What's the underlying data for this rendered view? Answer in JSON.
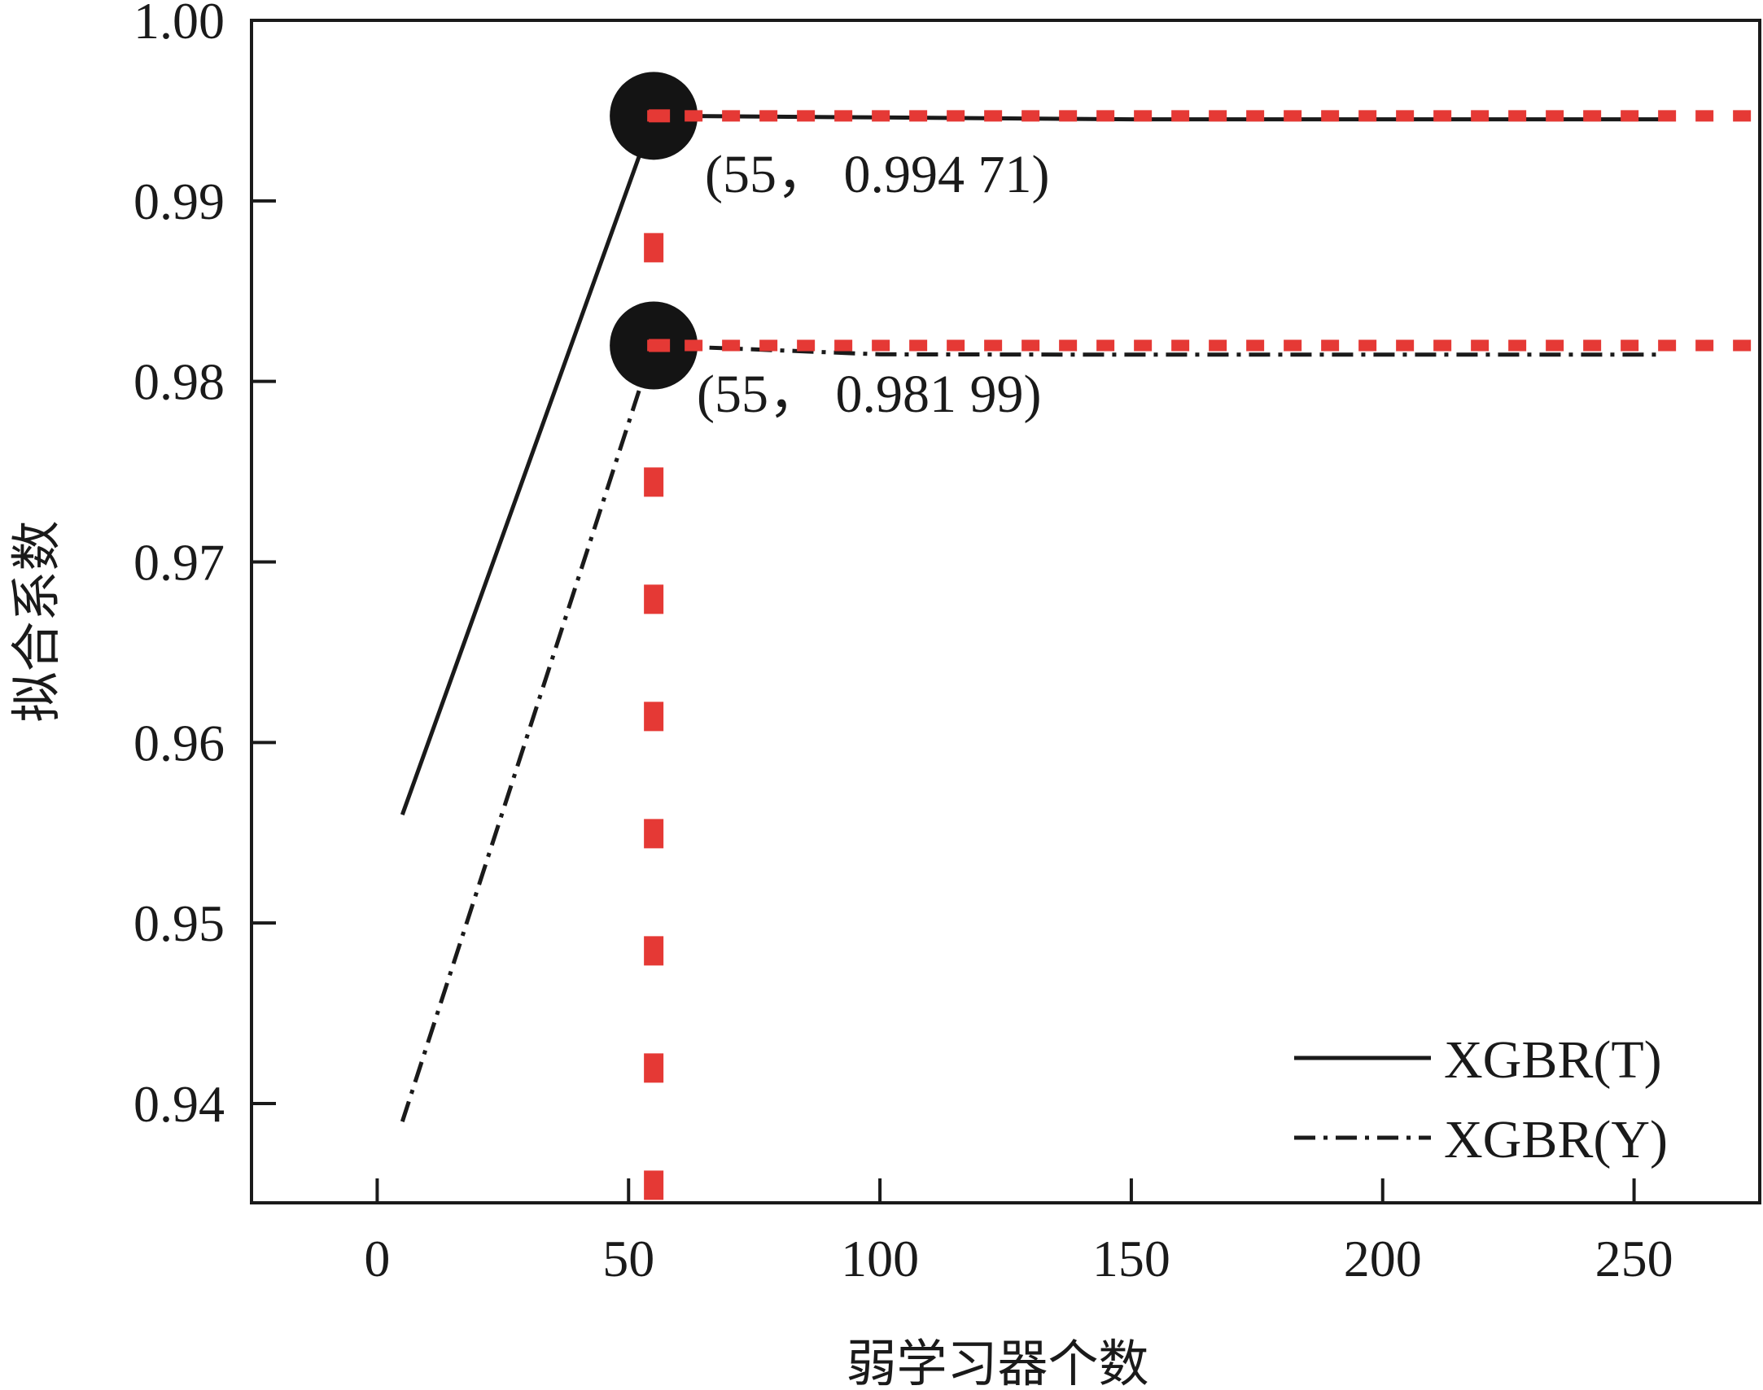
{
  "chart_data": {
    "type": "line",
    "xlabel": "弱学习器个数",
    "ylabel": "拟合系数",
    "xlim": [
      -25,
      275
    ],
    "ylim": [
      0.9345,
      1.0
    ],
    "xticks": [
      0,
      50,
      100,
      150,
      200,
      250
    ],
    "yticks": [
      0.94,
      0.95,
      0.96,
      0.97,
      0.98,
      0.99,
      1.0
    ],
    "xtick_labels": [
      "0",
      "50",
      "100",
      "150",
      "200",
      "250"
    ],
    "ytick_labels": [
      "0.94",
      "0.95",
      "0.96",
      "0.97",
      "0.98",
      "0.99",
      "1.00"
    ],
    "grid": false,
    "legend_position": "bottom-right",
    "series": [
      {
        "name": "XGBR(T)",
        "line_style": "solid",
        "color": "#1a1a1a",
        "x": [
          5,
          55,
          100,
          150,
          200,
          255
        ],
        "y": [
          0.956,
          0.99471,
          0.99462,
          0.99452,
          0.99452,
          0.99452
        ]
      },
      {
        "name": "XGBR(Y)",
        "line_style": "dash-dot",
        "color": "#1a1a1a",
        "x": [
          5,
          55,
          100,
          150,
          200,
          255
        ],
        "y": [
          0.939,
          0.98199,
          0.9815,
          0.98148,
          0.98148,
          0.98148
        ]
      }
    ],
    "highlights": [
      {
        "x": 55,
        "y": 0.99471,
        "label": "(55， 0.994 71)"
      },
      {
        "x": 55,
        "y": 0.98199,
        "label": "(55， 0.981 99)"
      }
    ],
    "reference_line_color": "#e53935",
    "marker_color": "#141414"
  }
}
